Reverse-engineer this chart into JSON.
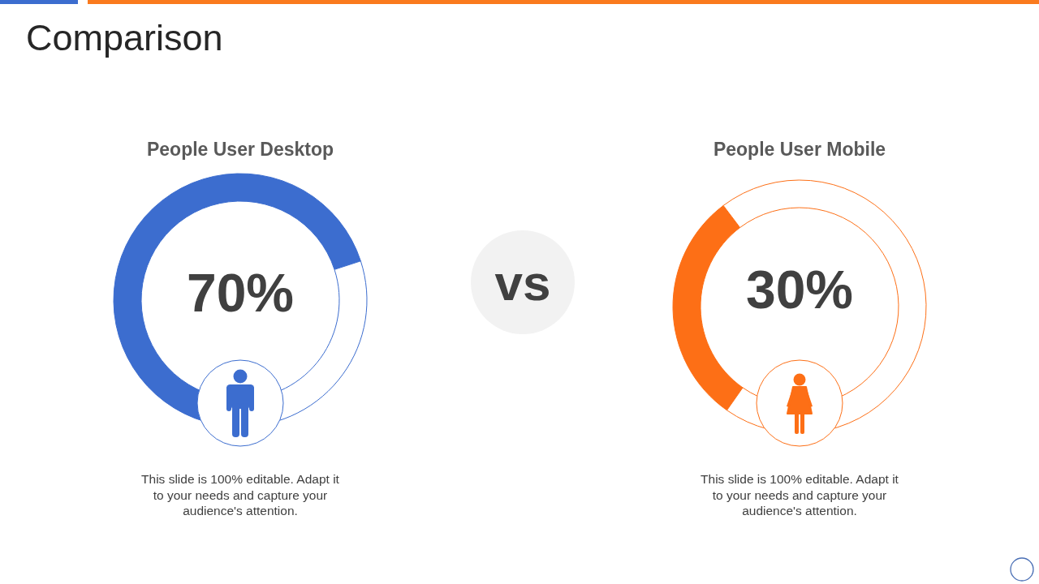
{
  "chart_data": [
    {
      "type": "other",
      "title": "Comparison"
    },
    {
      "type": "donut",
      "title": "People User Desktop",
      "categories": [
        null,
        null
      ],
      "values": [
        70,
        30
      ],
      "colors": [
        "#3c6dcf",
        "#ffffff"
      ],
      "annotations": [
        "70%",
        "This slide is 100% editable. Adapt it to your needs and capture your audience's attention."
      ]
    },
    {
      "type": "other",
      "annotations": [
        "vs"
      ]
    },
    {
      "type": "donut",
      "title": "People User Mobile",
      "categories": [
        null,
        null
      ],
      "values": [
        30,
        70
      ],
      "colors": [
        "#fd6f16",
        "#ffffff"
      ],
      "annotations": [
        "30%",
        "This slide is 100% editable. Adapt it to your needs and capture your audience's attention."
      ]
    }
  ]
}
